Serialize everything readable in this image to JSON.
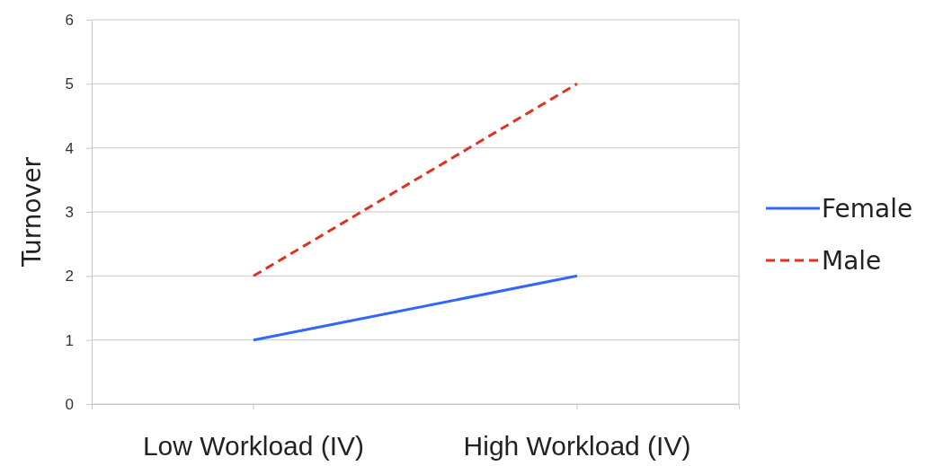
{
  "chart_data": {
    "type": "line",
    "ylabel": "Turnover",
    "categories": [
      "Low Workload (IV)",
      "High Workload (IV)"
    ],
    "series": [
      {
        "name": "Female",
        "color": "#3366ff",
        "values": [
          1,
          2
        ],
        "line_style": "solid"
      },
      {
        "name": "Male",
        "color": "#dd3322",
        "values": [
          2,
          5
        ],
        "line_style": "dashed"
      }
    ],
    "ylim": [
      0,
      6
    ],
    "yticks": [
      0,
      1,
      2,
      3,
      4,
      5,
      6
    ],
    "grid": "y",
    "legend": "right",
    "marker": "none"
  }
}
